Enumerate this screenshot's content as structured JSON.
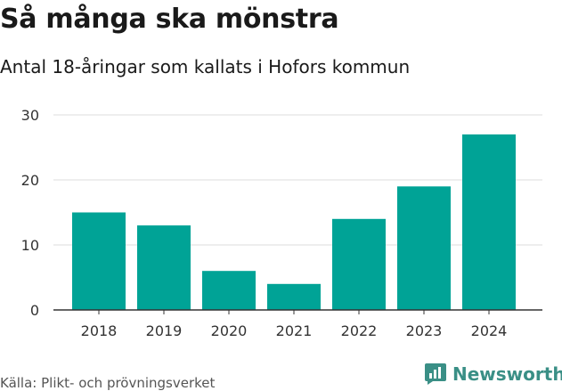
{
  "title": "Så många ska mönstra",
  "subtitle": "Antal 18-åringar som kallats i Hofors kommun",
  "source": "Källa: Plikt- och prövningsverket",
  "brand": {
    "name": "Newsworthy",
    "icon": "newsworthy-logo-icon",
    "color": "#3a8f86"
  },
  "colors": {
    "bar": "#00a396",
    "grid": "#dddddd",
    "axis": "#333333",
    "text": "#333333"
  },
  "chart_data": {
    "type": "bar",
    "categories": [
      "2018",
      "2019",
      "2020",
      "2021",
      "2022",
      "2023",
      "2024"
    ],
    "values": [
      15,
      13,
      6,
      4,
      14,
      19,
      27
    ],
    "yticks": [
      0,
      10,
      20,
      30
    ],
    "ylim": [
      0,
      30
    ],
    "grid": true
  }
}
